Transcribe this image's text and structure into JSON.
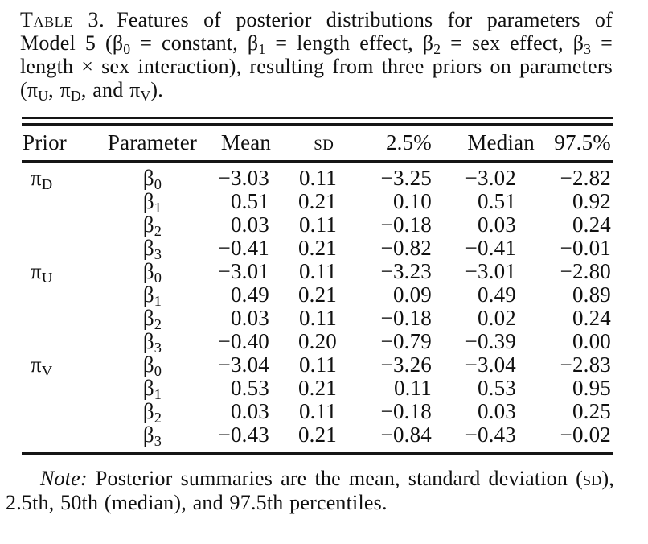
{
  "caption": {
    "label": "Table 3.",
    "segments": [
      {
        "t": "Features of posterior distributions for parameters of Model 5 ("
      },
      {
        "t": "β"
      },
      {
        "sub": "0"
      },
      {
        "t": " = constant, "
      },
      {
        "t": "β"
      },
      {
        "sub": "1"
      },
      {
        "t": " = length effect, "
      },
      {
        "t": "β"
      },
      {
        "sub": "2"
      },
      {
        "t": " = sex effect, "
      },
      {
        "t": "β"
      },
      {
        "sub": "3"
      },
      {
        "t": " = length × sex interaction), resulting from three priors on parameters ("
      },
      {
        "t": "π"
      },
      {
        "sub": "U"
      },
      {
        "t": ", "
      },
      {
        "t": "π"
      },
      {
        "sub": "D"
      },
      {
        "t": ", and "
      },
      {
        "t": "π"
      },
      {
        "sub": "V"
      },
      {
        "t": ")."
      }
    ]
  },
  "table": {
    "columns": [
      "Prior",
      "Parameter",
      "Mean",
      "sd",
      "2.5%",
      "Median",
      "97.5%"
    ],
    "groups": [
      {
        "prior": {
          "base": "π",
          "sub": "D"
        },
        "rows": [
          {
            "param": {
              "base": "β",
              "sub": "0"
            },
            "mean": "−3.03",
            "sd": "0.11",
            "p2_5": "−3.25",
            "median": "−3.02",
            "p97_5": "−2.82"
          },
          {
            "param": {
              "base": "β",
              "sub": "1"
            },
            "mean": "0.51",
            "sd": "0.21",
            "p2_5": "0.10",
            "median": "0.51",
            "p97_5": "0.92"
          },
          {
            "param": {
              "base": "β",
              "sub": "2"
            },
            "mean": "0.03",
            "sd": "0.11",
            "p2_5": "−0.18",
            "median": "0.03",
            "p97_5": "0.24"
          },
          {
            "param": {
              "base": "β",
              "sub": "3"
            },
            "mean": "−0.41",
            "sd": "0.21",
            "p2_5": "−0.82",
            "median": "−0.41",
            "p97_5": "−0.01"
          }
        ]
      },
      {
        "prior": {
          "base": "π",
          "sub": "U"
        },
        "rows": [
          {
            "param": {
              "base": "β",
              "sub": "0"
            },
            "mean": "−3.01",
            "sd": "0.11",
            "p2_5": "−3.23",
            "median": "−3.01",
            "p97_5": "−2.80"
          },
          {
            "param": {
              "base": "β",
              "sub": "1"
            },
            "mean": "0.49",
            "sd": "0.21",
            "p2_5": "0.09",
            "median": "0.49",
            "p97_5": "0.89"
          },
          {
            "param": {
              "base": "β",
              "sub": "2"
            },
            "mean": "0.03",
            "sd": "0.11",
            "p2_5": "−0.18",
            "median": "0.02",
            "p97_5": "0.24"
          },
          {
            "param": {
              "base": "β",
              "sub": "3"
            },
            "mean": "−0.40",
            "sd": "0.20",
            "p2_5": "−0.79",
            "median": "−0.39",
            "p97_5": "0.00"
          }
        ]
      },
      {
        "prior": {
          "base": "π",
          "sub": "V"
        },
        "rows": [
          {
            "param": {
              "base": "β",
              "sub": "0"
            },
            "mean": "−3.04",
            "sd": "0.11",
            "p2_5": "−3.26",
            "median": "−3.04",
            "p97_5": "−2.83"
          },
          {
            "param": {
              "base": "β",
              "sub": "1"
            },
            "mean": "0.53",
            "sd": "0.21",
            "p2_5": "0.11",
            "median": "0.53",
            "p97_5": "0.95"
          },
          {
            "param": {
              "base": "β",
              "sub": "2"
            },
            "mean": "0.03",
            "sd": "0.11",
            "p2_5": "−0.18",
            "median": "0.03",
            "p97_5": "0.25"
          },
          {
            "param": {
              "base": "β",
              "sub": "3"
            },
            "mean": "−0.43",
            "sd": "0.21",
            "p2_5": "−0.84",
            "median": "−0.43",
            "p97_5": "−0.02"
          }
        ]
      }
    ]
  },
  "note": {
    "segments": [
      {
        "t": "Note:",
        "italic": true
      },
      {
        "t": " Posterior summaries are the mean, standard deviation ("
      },
      {
        "t": "sd",
        "smallcaps": true
      },
      {
        "t": "), 2.5th, 50th (median), and 97.5th percentiles."
      }
    ]
  }
}
